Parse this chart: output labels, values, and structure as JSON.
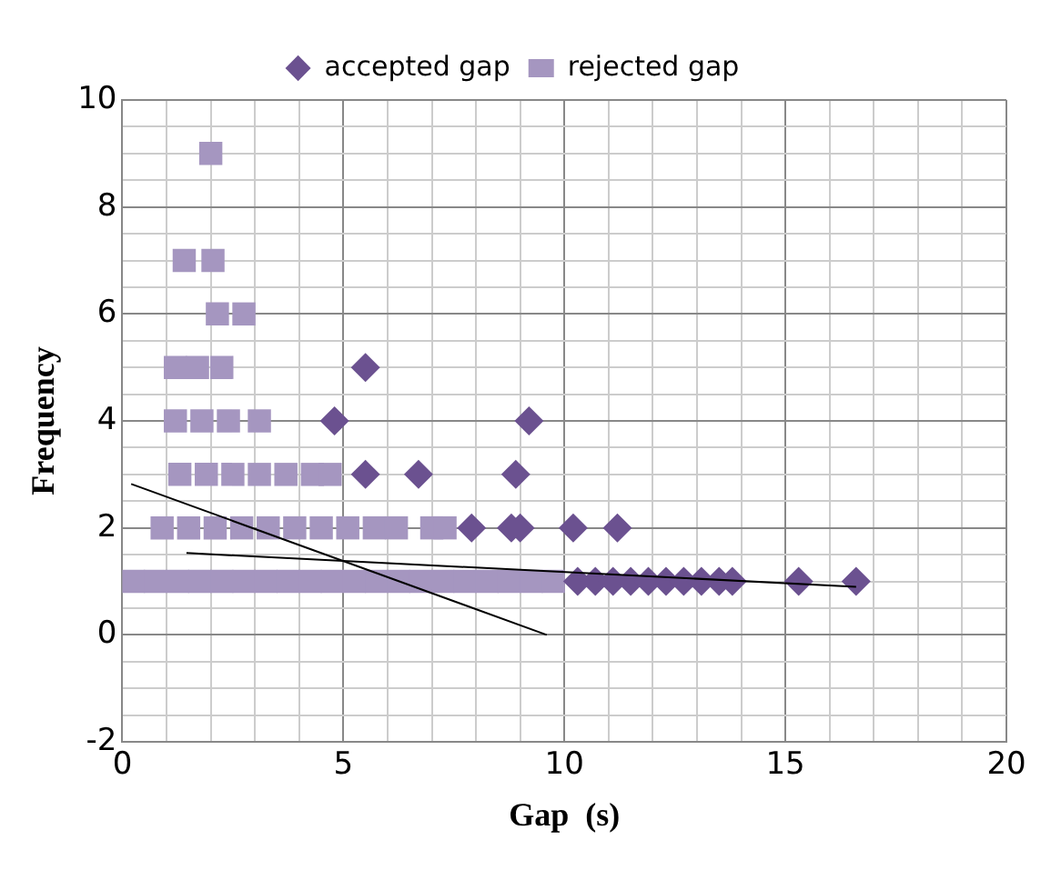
{
  "chart_data": {
    "type": "scatter",
    "xlabel": "Gap  (s)",
    "ylabel": "Frequency",
    "xlim": [
      0,
      20
    ],
    "ylim": [
      -2,
      10
    ],
    "xticks": [
      0,
      {
        "value": 1,
        "label": null
      },
      {
        "value": 2,
        "label": null
      },
      {
        "value": 3,
        "label": null
      },
      {
        "value": 4,
        "label": null
      },
      5,
      {
        "value": 6,
        "label": null
      },
      {
        "value": 7,
        "label": null
      },
      {
        "value": 8,
        "label": null
      },
      {
        "value": 9,
        "label": null
      },
      10,
      {
        "value": 11,
        "label": null
      },
      {
        "value": 12,
        "label": null
      },
      {
        "value": 13,
        "label": null
      },
      {
        "value": 14,
        "label": null
      },
      15,
      {
        "value": 16,
        "label": null
      },
      {
        "value": 17,
        "label": null
      },
      {
        "value": 18,
        "label": null
      },
      {
        "value": 19,
        "label": null
      },
      20
    ],
    "yticks": [
      -2,
      {
        "value": -1.5,
        "label": null
      },
      {
        "value": -1,
        "label": null
      },
      {
        "value": -0.5,
        "label": null
      },
      0,
      {
        "value": 0.5,
        "label": null
      },
      {
        "value": 1,
        "label": null
      },
      {
        "value": 1.5,
        "label": null
      },
      2,
      {
        "value": 2.5,
        "label": null
      },
      {
        "value": 3,
        "label": null
      },
      {
        "value": 3.5,
        "label": null
      },
      4,
      {
        "value": 4.5,
        "label": null
      },
      {
        "value": 5,
        "label": null
      },
      {
        "value": 5.5,
        "label": null
      },
      6,
      {
        "value": 6.5,
        "label": null
      },
      {
        "value": 7,
        "label": null
      },
      {
        "value": 7.5,
        "label": null
      },
      8,
      {
        "value": 8.5,
        "label": null
      },
      {
        "value": 9,
        "label": null
      },
      {
        "value": 9.5,
        "label": null
      },
      10
    ],
    "grid": true,
    "legend": "top",
    "series": [
      {
        "name": "accepted gap",
        "color": "#6b5190",
        "marker": "diamond",
        "x": [
          5.5,
          4.8,
          9.2,
          5.5,
          6.7,
          8.9,
          7.9,
          8.8,
          9.0,
          10.2,
          11.2,
          10.3,
          10.7,
          11.1,
          11.5,
          11.9,
          12.3,
          12.7,
          13.1,
          13.5,
          13.8,
          15.3,
          16.6
        ],
        "values": [
          5,
          4,
          4,
          3,
          3,
          3,
          2,
          2,
          2,
          2,
          2,
          1,
          1,
          1,
          1,
          1,
          1,
          1,
          1,
          1,
          1,
          1,
          1
        ]
      },
      {
        "name": "rejected gap",
        "color": "#a596c0",
        "marker": "square",
        "x": [
          2.0,
          1.4,
          2.05,
          2.15,
          2.75,
          1.2,
          1.7,
          2.25,
          1.2,
          1.8,
          2.4,
          3.1,
          1.3,
          1.9,
          2.5,
          3.1,
          3.7,
          4.3,
          4.7,
          0.9,
          1.5,
          2.1,
          2.7,
          3.3,
          3.9,
          4.5,
          5.1,
          5.7,
          6.2,
          7.0,
          7.3,
          0.25,
          0.75,
          1.25,
          1.75,
          2.25,
          2.75,
          3.25,
          3.75,
          4.25,
          4.75,
          5.25,
          5.75,
          6.25,
          6.75,
          7.25,
          7.75,
          8.25,
          8.75,
          9.25,
          9.75
        ],
        "values": [
          9,
          7,
          7,
          6,
          6,
          5,
          5,
          5,
          4,
          4,
          4,
          4,
          3,
          3,
          3,
          3,
          3,
          3,
          3,
          2,
          2,
          2,
          2,
          2,
          2,
          2,
          2,
          2,
          2,
          2,
          2,
          1,
          1,
          1,
          1,
          1,
          1,
          1,
          1,
          1,
          1,
          1,
          1,
          1,
          1,
          1,
          1,
          1,
          1,
          1,
          1
        ]
      },
      {
        "type": "line",
        "color": "#000000",
        "marker": "none",
        "x": [
          0.2,
          9.6
        ],
        "values": [
          2.82,
          0
        ]
      },
      {
        "type": "line",
        "color": "#000000",
        "marker": "none",
        "x": [
          1.45,
          16.6
        ],
        "values": [
          1.53,
          0.9
        ]
      }
    ]
  }
}
